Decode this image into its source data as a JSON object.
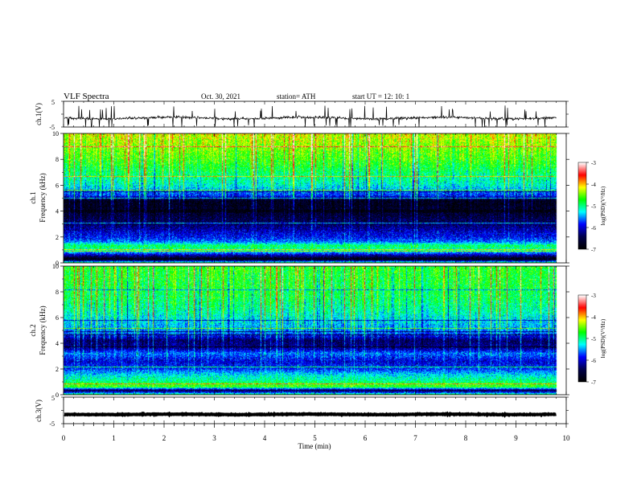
{
  "header": {
    "title": "VLF  Spectra",
    "date": "Oct. 30, 2021",
    "station": "station= ATH",
    "start_ut": "start  UT  =    12: 10: 1"
  },
  "colors": {
    "palette": [
      "#ffffff",
      "#ff0000",
      "#ffff00",
      "#00ff00",
      "#00ffff",
      "#0000ff",
      "#00004c",
      "#000000"
    ],
    "trace": "#000000"
  },
  "chart_data": [
    {
      "type": "line",
      "panel": "ch1-waveform",
      "ylabel": "ch.1(V)",
      "ylim": [
        -5,
        5
      ],
      "yticks": [
        "5",
        "-5"
      ],
      "xlim": [
        0,
        10
      ],
      "data_end_min": 9.8,
      "baseline_v": -1.5,
      "noise_v": 0.6
    },
    {
      "type": "heatmap",
      "panel": "ch1-spectrogram",
      "label": "ch.1",
      "ylabel": "Frequency  (kHz)",
      "ylim": [
        0,
        10
      ],
      "yticks": [
        "0",
        "2",
        "4",
        "6",
        "8",
        "10"
      ],
      "xlim": [
        0,
        10
      ],
      "data_end_min": 9.8,
      "profile": [
        [
          0.0,
          -5.0
        ],
        [
          0.25,
          -7.0
        ],
        [
          0.5,
          -6.3
        ],
        [
          0.9,
          -5.2
        ],
        [
          1.3,
          -4.9
        ],
        [
          1.6,
          -5.6
        ],
        [
          2.0,
          -5.9
        ],
        [
          2.3,
          -6.0
        ],
        [
          3.0,
          -6.4
        ],
        [
          4.0,
          -6.7
        ],
        [
          4.8,
          -6.8
        ],
        [
          5.2,
          -5.8
        ],
        [
          6.0,
          -5.2
        ],
        [
          7.0,
          -4.9
        ],
        [
          8.0,
          -4.6
        ],
        [
          9.0,
          -4.4
        ],
        [
          10.0,
          -4.2
        ]
      ],
      "colorbar": {
        "label": "log(PSD)(V²/Hz)",
        "ticks": [
          "-3",
          "-4",
          "-5",
          "-6",
          "-7"
        ],
        "range": [
          -7,
          -3
        ]
      }
    },
    {
      "type": "heatmap",
      "panel": "ch2-spectrogram",
      "label": "ch.2",
      "ylabel": "Frequency  (kHz)",
      "ylim": [
        0,
        10
      ],
      "yticks": [
        "0",
        "2",
        "4",
        "6",
        "8",
        "10"
      ],
      "xlim": [
        0,
        10
      ],
      "data_end_min": 9.8,
      "profile": [
        [
          0.0,
          -5.0
        ],
        [
          0.3,
          -6.6
        ],
        [
          0.6,
          -4.6
        ],
        [
          1.0,
          -5.0
        ],
        [
          1.5,
          -5.3
        ],
        [
          2.0,
          -5.8
        ],
        [
          2.6,
          -6.0
        ],
        [
          3.2,
          -5.6
        ],
        [
          3.6,
          -6.2
        ],
        [
          4.2,
          -6.4
        ],
        [
          4.8,
          -5.6
        ],
        [
          5.5,
          -5.4
        ],
        [
          6.5,
          -5.1
        ],
        [
          7.5,
          -4.9
        ],
        [
          8.5,
          -4.8
        ],
        [
          10.0,
          -4.7
        ]
      ],
      "colorbar": {
        "label": "log(PSD)(V²/Hz)",
        "ticks": [
          "-3",
          "-4",
          "-5",
          "-6",
          "-7"
        ],
        "range": [
          -7,
          -3
        ]
      }
    },
    {
      "type": "line",
      "panel": "ch3-waveform",
      "ylabel": "ch.3(V)",
      "ylim": [
        -5,
        5
      ],
      "yticks": [
        "5",
        "-5"
      ],
      "xlim": [
        0,
        10
      ],
      "data_end_min": 9.8,
      "baseline_v": -1.5,
      "noise_v": 0.15
    }
  ],
  "xaxis": {
    "label": "Time  (min)",
    "ticks": [
      "0",
      "1",
      "2",
      "3",
      "4",
      "5",
      "6",
      "7",
      "8",
      "9",
      "10"
    ]
  }
}
